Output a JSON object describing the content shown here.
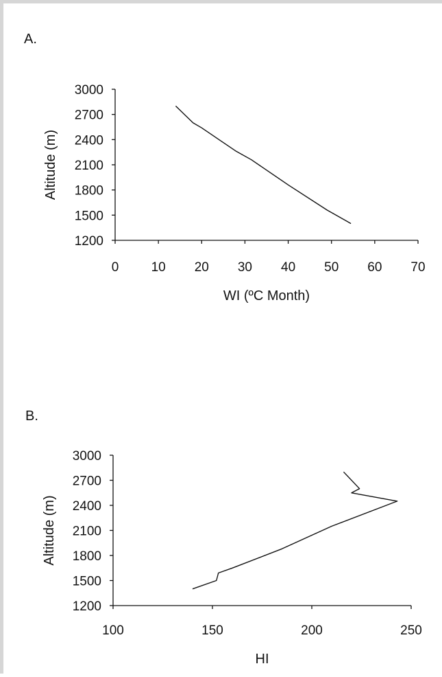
{
  "chart_data": [
    {
      "type": "line",
      "panel_label": "A.",
      "xlabel": "WI (ºC Month)",
      "ylabel": "Altitude (m)",
      "xlim": [
        0,
        70
      ],
      "ylim": [
        1200,
        3000
      ],
      "xticks": [
        0,
        10,
        20,
        30,
        40,
        50,
        60,
        70
      ],
      "yticks": [
        1200,
        1500,
        1800,
        2100,
        2400,
        2700,
        3000
      ],
      "grid": false,
      "series": [
        {
          "color": "#111111",
          "x": [
            14,
            18,
            20,
            24,
            28,
            31.5,
            40,
            49,
            54.5
          ],
          "y": [
            2800,
            2600,
            2540,
            2400,
            2260,
            2160,
            1860,
            1560,
            1400
          ]
        }
      ]
    },
    {
      "type": "line",
      "panel_label": "B.",
      "xlabel": "HI",
      "ylabel": "Altitude (m)",
      "xlim": [
        100,
        250
      ],
      "ylim": [
        1200,
        3000
      ],
      "xticks": [
        100,
        150,
        200,
        250
      ],
      "yticks": [
        1200,
        1500,
        1800,
        2100,
        2400,
        2700,
        3000
      ],
      "grid": false,
      "series": [
        {
          "color": "#111111",
          "x": [
            140,
            152,
            153,
            160,
            185,
            210,
            243,
            220,
            224,
            216
          ],
          "y": [
            1400,
            1500,
            1590,
            1650,
            1880,
            2150,
            2450,
            2550,
            2600,
            2800
          ]
        }
      ]
    }
  ]
}
